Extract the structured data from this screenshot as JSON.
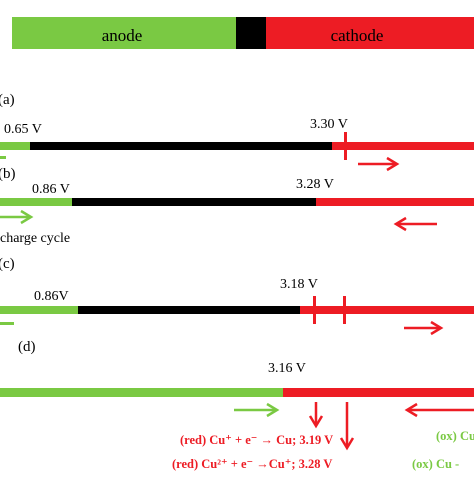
{
  "colors": {
    "anode": "#7ac943",
    "cathode": "#ed1c24",
    "gap": "#000000",
    "text": "#000000",
    "red_text": "#ed1c24",
    "green_text": "#7ac943"
  },
  "header": {
    "anode_label": "anode",
    "cathode_label": "cathode"
  },
  "panels": [
    {
      "label": "(a)",
      "values": [
        "0.65 V",
        "3.30 V"
      ]
    },
    {
      "label": "(b)",
      "values": [
        "0.86 V",
        "3.28 V"
      ],
      "caption": "charge cycle"
    },
    {
      "label": "(c)",
      "values": [
        "0.86V",
        "3.18 V"
      ]
    },
    {
      "label": "(d)",
      "values": [
        "3.16 V"
      ]
    }
  ],
  "reactions": {
    "red1": "(red) Cu⁺ + e⁻ → Cu; 3.19 V",
    "red2": "(red) Cu²⁺ + e⁻ →Cu⁺; 3.28 V",
    "ox1": "(ox) Cu -",
    "ox2": "(ox) Cu -"
  }
}
